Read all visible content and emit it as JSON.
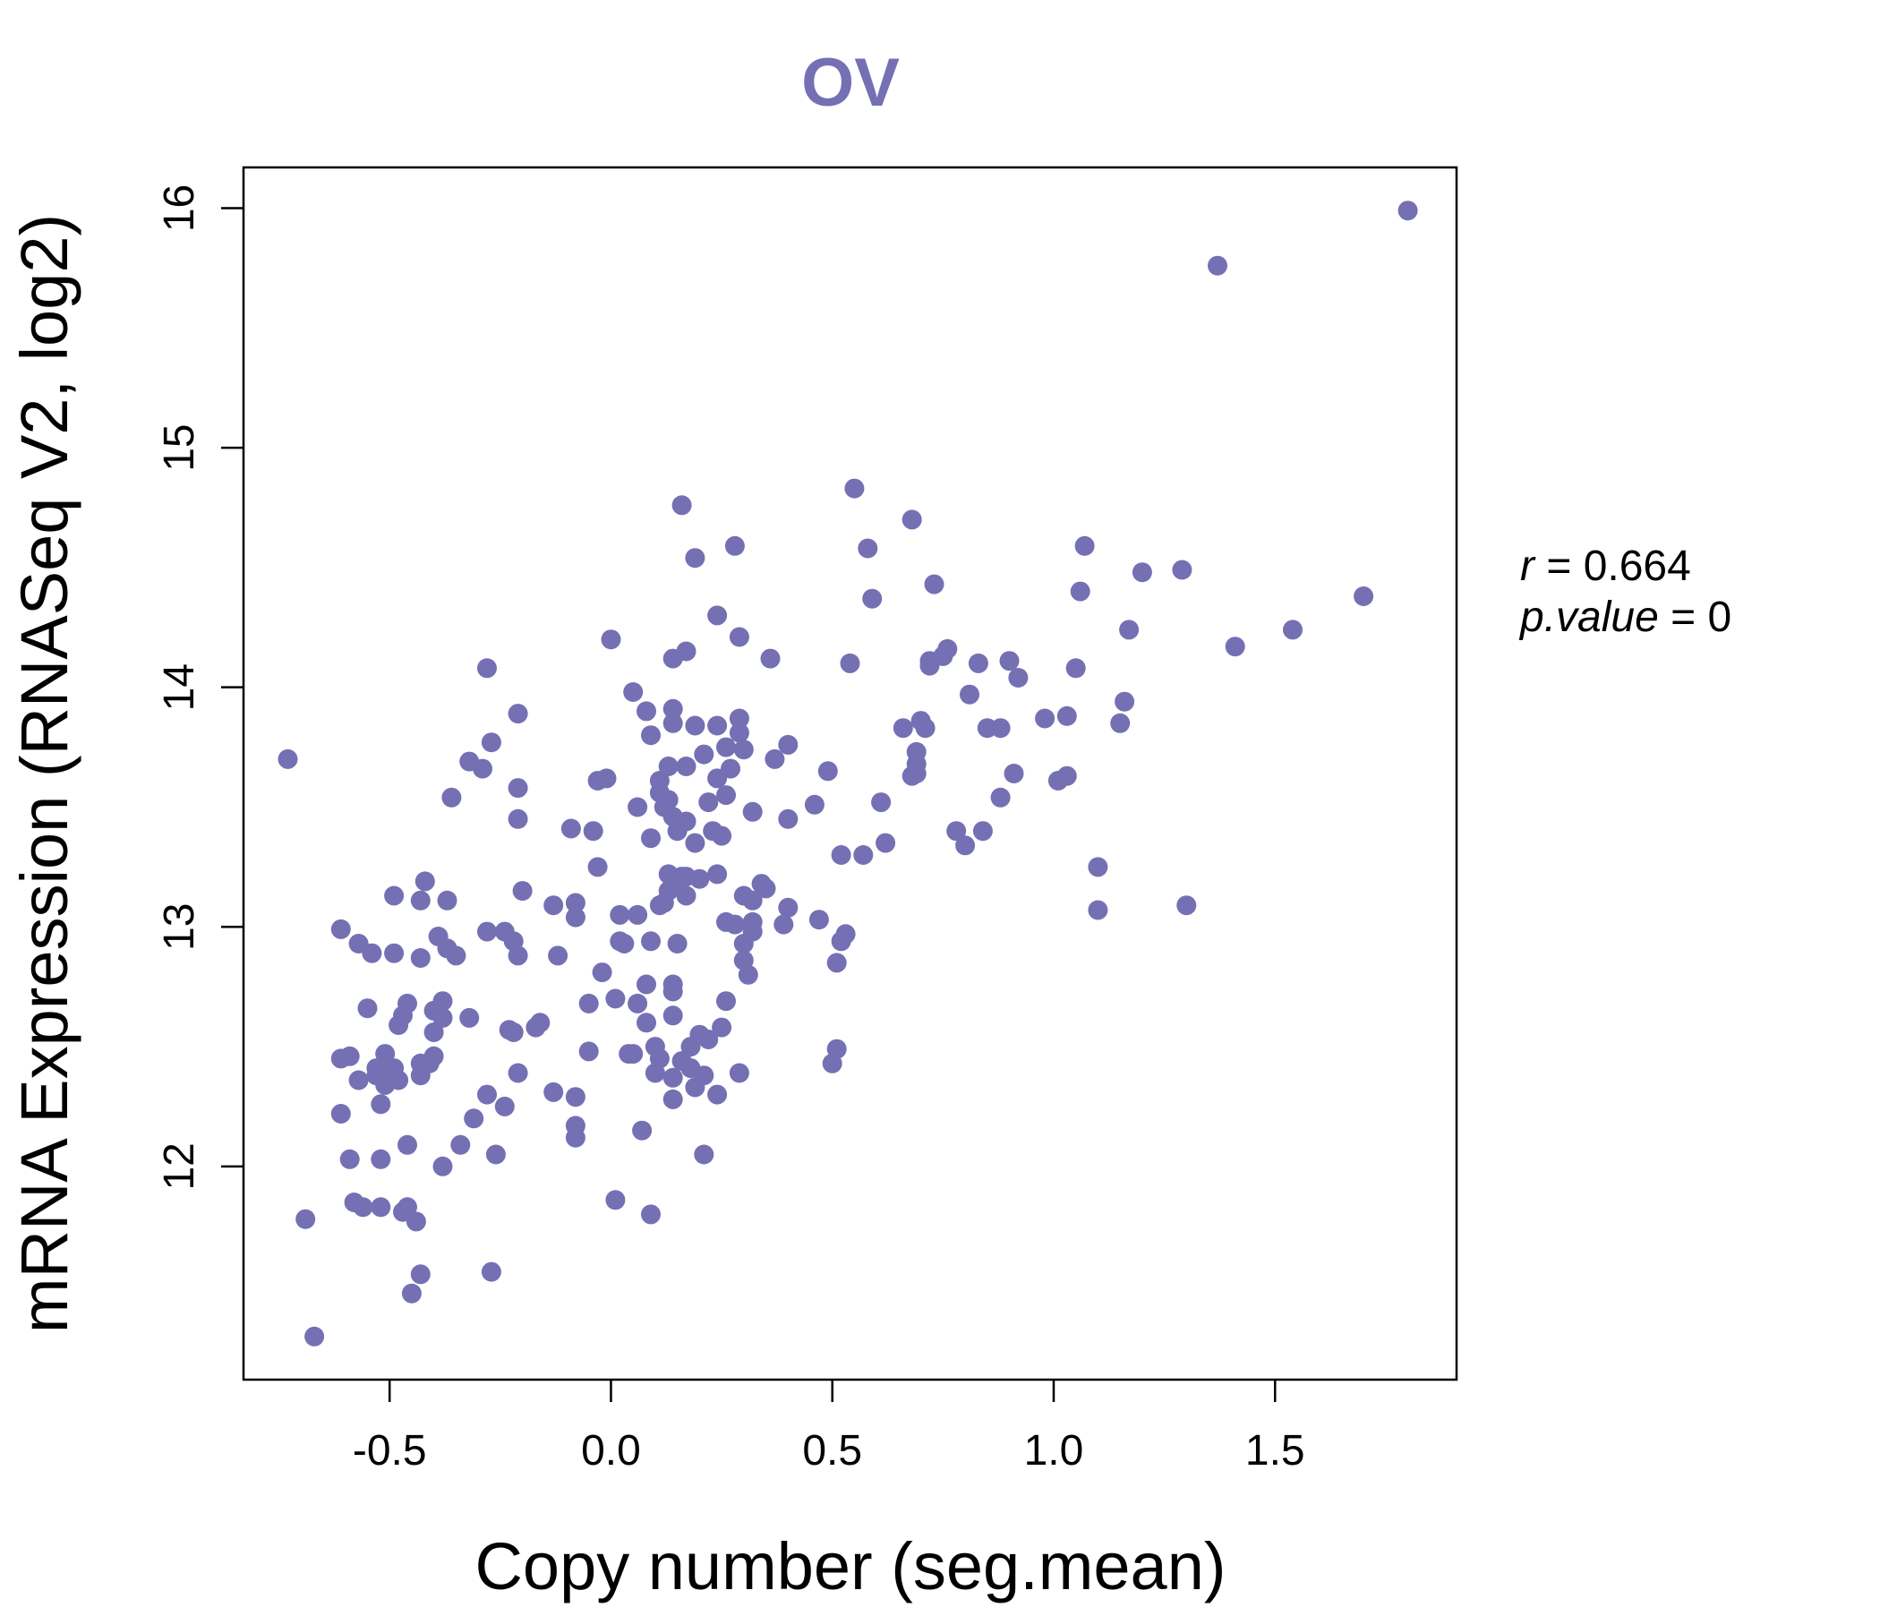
{
  "accent_color": "#7570b3",
  "chart_data": {
    "type": "scatter",
    "title": "OV",
    "xlabel": "Copy number (seg.mean)",
    "ylabel": "mRNA Expression (RNASeq V2, log2)",
    "xlim": [
      -0.83,
      1.91
    ],
    "ylim": [
      11.11,
      16.17
    ],
    "xticks": [
      -0.5,
      0.0,
      0.5,
      1.0,
      1.5
    ],
    "xtick_labels": [
      "-0.5",
      "0.0",
      "0.5",
      "1.0",
      "1.5"
    ],
    "yticks": [
      12,
      13,
      14,
      15,
      16
    ],
    "ytick_labels": [
      "12",
      "13",
      "14",
      "15",
      "16"
    ],
    "grid": false,
    "annotations": {
      "r_label": "r",
      "r_value": "0.664",
      "p_label": "p.value",
      "p_value": "0"
    },
    "points": [
      [
        -0.73,
        13.7
      ],
      [
        -0.69,
        11.78
      ],
      [
        -0.67,
        11.29
      ],
      [
        -0.61,
        12.99
      ],
      [
        -0.61,
        12.45
      ],
      [
        -0.61,
        12.22
      ],
      [
        -0.59,
        12.46
      ],
      [
        -0.59,
        12.03
      ],
      [
        -0.58,
        11.85
      ],
      [
        -0.57,
        12.93
      ],
      [
        -0.57,
        12.36
      ],
      [
        -0.56,
        11.83
      ],
      [
        -0.55,
        12.66
      ],
      [
        -0.54,
        12.89
      ],
      [
        -0.53,
        12.41
      ],
      [
        -0.53,
        12.38
      ],
      [
        -0.52,
        12.26
      ],
      [
        -0.52,
        12.03
      ],
      [
        -0.52,
        11.83
      ],
      [
        -0.51,
        12.47
      ],
      [
        -0.51,
        12.34
      ],
      [
        -0.5,
        12.38
      ],
      [
        -0.49,
        12.41
      ],
      [
        -0.49,
        13.13
      ],
      [
        -0.49,
        12.89
      ],
      [
        -0.48,
        12.59
      ],
      [
        -0.48,
        12.36
      ],
      [
        -0.47,
        12.63
      ],
      [
        -0.47,
        11.81
      ],
      [
        -0.46,
        12.68
      ],
      [
        -0.46,
        12.09
      ],
      [
        -0.46,
        11.83
      ],
      [
        -0.45,
        11.47
      ],
      [
        -0.44,
        11.77
      ],
      [
        -0.43,
        13.11
      ],
      [
        -0.43,
        12.87
      ],
      [
        -0.43,
        12.43
      ],
      [
        -0.43,
        12.38
      ],
      [
        -0.43,
        11.55
      ],
      [
        -0.42,
        13.19
      ],
      [
        -0.41,
        12.43
      ],
      [
        -0.4,
        12.56
      ],
      [
        -0.4,
        12.46
      ],
      [
        -0.4,
        12.65
      ],
      [
        -0.39,
        12.96
      ],
      [
        -0.38,
        12.69
      ],
      [
        -0.38,
        12.62
      ],
      [
        -0.38,
        12.0
      ],
      [
        -0.37,
        13.11
      ],
      [
        -0.37,
        12.91
      ],
      [
        -0.36,
        13.54
      ],
      [
        -0.35,
        12.88
      ],
      [
        -0.34,
        12.09
      ],
      [
        -0.32,
        12.62
      ],
      [
        -0.32,
        13.69
      ],
      [
        -0.31,
        12.2
      ],
      [
        -0.29,
        13.66
      ],
      [
        -0.28,
        12.98
      ],
      [
        -0.28,
        12.3
      ],
      [
        -0.28,
        14.08
      ],
      [
        -0.27,
        13.77
      ],
      [
        -0.27,
        11.56
      ],
      [
        -0.26,
        12.05
      ],
      [
        -0.24,
        12.98
      ],
      [
        -0.24,
        12.25
      ],
      [
        -0.23,
        12.57
      ],
      [
        -0.22,
        12.94
      ],
      [
        -0.22,
        12.56
      ],
      [
        -0.21,
        13.89
      ],
      [
        -0.21,
        13.58
      ],
      [
        -0.21,
        13.45
      ],
      [
        -0.21,
        12.88
      ],
      [
        -0.21,
        12.39
      ],
      [
        -0.2,
        13.15
      ],
      [
        -0.17,
        12.58
      ],
      [
        -0.16,
        12.6
      ],
      [
        -0.13,
        13.09
      ],
      [
        -0.13,
        12.31
      ],
      [
        -0.12,
        12.88
      ],
      [
        -0.09,
        13.41
      ],
      [
        -0.08,
        13.1
      ],
      [
        -0.08,
        13.04
      ],
      [
        -0.08,
        12.29
      ],
      [
        -0.08,
        12.17
      ],
      [
        -0.08,
        12.12
      ],
      [
        -0.05,
        12.68
      ],
      [
        -0.05,
        12.48
      ],
      [
        -0.04,
        13.4
      ],
      [
        -0.03,
        13.25
      ],
      [
        -0.03,
        13.61
      ],
      [
        -0.02,
        12.81
      ],
      [
        -0.01,
        13.62
      ],
      [
        0.0,
        14.2
      ],
      [
        0.01,
        12.7
      ],
      [
        0.01,
        11.86
      ],
      [
        0.02,
        13.05
      ],
      [
        0.02,
        12.94
      ],
      [
        0.03,
        12.93
      ],
      [
        0.04,
        12.47
      ],
      [
        0.05,
        12.47
      ],
      [
        0.05,
        13.98
      ],
      [
        0.06,
        12.68
      ],
      [
        0.06,
        13.05
      ],
      [
        0.06,
        13.5
      ],
      [
        0.07,
        12.15
      ],
      [
        0.08,
        12.76
      ],
      [
        0.08,
        12.6
      ],
      [
        0.08,
        13.9
      ],
      [
        0.09,
        13.8
      ],
      [
        0.09,
        13.37
      ],
      [
        0.09,
        12.94
      ],
      [
        0.09,
        11.8
      ],
      [
        0.1,
        12.5
      ],
      [
        0.1,
        12.39
      ],
      [
        0.11,
        13.61
      ],
      [
        0.11,
        13.56
      ],
      [
        0.11,
        13.09
      ],
      [
        0.11,
        12.45
      ],
      [
        0.12,
        13.5
      ],
      [
        0.12,
        13.1
      ],
      [
        0.13,
        13.67
      ],
      [
        0.13,
        13.53
      ],
      [
        0.13,
        13.22
      ],
      [
        0.13,
        13.15
      ],
      [
        0.14,
        14.12
      ],
      [
        0.14,
        13.91
      ],
      [
        0.14,
        13.85
      ],
      [
        0.14,
        13.46
      ],
      [
        0.14,
        13.17
      ],
      [
        0.14,
        12.76
      ],
      [
        0.14,
        12.73
      ],
      [
        0.14,
        12.63
      ],
      [
        0.14,
        12.37
      ],
      [
        0.14,
        12.28
      ],
      [
        0.15,
        13.4
      ],
      [
        0.15,
        12.93
      ],
      [
        0.16,
        14.76
      ],
      [
        0.16,
        13.21
      ],
      [
        0.16,
        12.44
      ],
      [
        0.17,
        14.15
      ],
      [
        0.17,
        13.67
      ],
      [
        0.17,
        13.44
      ],
      [
        0.17,
        13.21
      ],
      [
        0.17,
        13.13
      ],
      [
        0.18,
        12.5
      ],
      [
        0.18,
        12.41
      ],
      [
        0.19,
        14.54
      ],
      [
        0.19,
        13.84
      ],
      [
        0.19,
        13.35
      ],
      [
        0.19,
        12.33
      ],
      [
        0.2,
        13.2
      ],
      [
        0.2,
        12.55
      ],
      [
        0.21,
        13.72
      ],
      [
        0.21,
        12.38
      ],
      [
        0.21,
        12.05
      ],
      [
        0.22,
        13.52
      ],
      [
        0.22,
        12.53
      ],
      [
        0.23,
        13.4
      ],
      [
        0.24,
        14.3
      ],
      [
        0.24,
        13.84
      ],
      [
        0.24,
        13.62
      ],
      [
        0.24,
        13.22
      ],
      [
        0.24,
        12.3
      ],
      [
        0.25,
        13.38
      ],
      [
        0.25,
        12.58
      ],
      [
        0.26,
        13.75
      ],
      [
        0.26,
        13.55
      ],
      [
        0.26,
        13.02
      ],
      [
        0.26,
        12.69
      ],
      [
        0.27,
        13.66
      ],
      [
        0.28,
        14.59
      ],
      [
        0.28,
        13.01
      ],
      [
        0.29,
        14.21
      ],
      [
        0.29,
        13.87
      ],
      [
        0.29,
        13.81
      ],
      [
        0.29,
        12.39
      ],
      [
        0.3,
        13.74
      ],
      [
        0.3,
        13.13
      ],
      [
        0.3,
        12.93
      ],
      [
        0.3,
        12.86
      ],
      [
        0.31,
        12.8
      ],
      [
        0.32,
        13.48
      ],
      [
        0.32,
        13.02
      ],
      [
        0.32,
        12.98
      ],
      [
        0.32,
        13.11
      ],
      [
        0.34,
        13.18
      ],
      [
        0.35,
        13.16
      ],
      [
        0.36,
        14.12
      ],
      [
        0.37,
        13.7
      ],
      [
        0.39,
        13.01
      ],
      [
        0.4,
        13.76
      ],
      [
        0.4,
        13.45
      ],
      [
        0.4,
        13.08
      ],
      [
        0.46,
        13.51
      ],
      [
        0.47,
        13.03
      ],
      [
        0.49,
        13.65
      ],
      [
        0.5,
        12.43
      ],
      [
        0.51,
        12.85
      ],
      [
        0.51,
        12.49
      ],
      [
        0.52,
        13.3
      ],
      [
        0.52,
        12.94
      ],
      [
        0.53,
        12.97
      ],
      [
        0.54,
        14.1
      ],
      [
        0.55,
        14.83
      ],
      [
        0.57,
        13.3
      ],
      [
        0.58,
        14.58
      ],
      [
        0.59,
        14.37
      ],
      [
        0.61,
        13.52
      ],
      [
        0.62,
        13.35
      ],
      [
        0.66,
        13.83
      ],
      [
        0.68,
        14.7
      ],
      [
        0.68,
        13.63
      ],
      [
        0.69,
        13.64
      ],
      [
        0.69,
        13.68
      ],
      [
        0.69,
        13.73
      ],
      [
        0.7,
        13.86
      ],
      [
        0.71,
        13.83
      ],
      [
        0.72,
        14.09
      ],
      [
        0.72,
        14.11
      ],
      [
        0.73,
        14.43
      ],
      [
        0.75,
        14.13
      ],
      [
        0.76,
        14.16
      ],
      [
        0.78,
        13.4
      ],
      [
        0.8,
        13.34
      ],
      [
        0.81,
        13.97
      ],
      [
        0.83,
        14.1
      ],
      [
        0.84,
        13.4
      ],
      [
        0.85,
        13.83
      ],
      [
        0.88,
        13.83
      ],
      [
        0.88,
        13.54
      ],
      [
        0.9,
        14.11
      ],
      [
        0.91,
        13.64
      ],
      [
        0.92,
        14.04
      ],
      [
        0.98,
        13.87
      ],
      [
        1.01,
        13.61
      ],
      [
        1.03,
        13.88
      ],
      [
        1.03,
        13.63
      ],
      [
        1.05,
        14.08
      ],
      [
        1.06,
        14.4
      ],
      [
        1.07,
        14.59
      ],
      [
        1.1,
        13.25
      ],
      [
        1.1,
        13.07
      ],
      [
        1.15,
        13.85
      ],
      [
        1.16,
        13.94
      ],
      [
        1.17,
        14.24
      ],
      [
        1.2,
        14.48
      ],
      [
        1.29,
        14.49
      ],
      [
        1.3,
        13.09
      ],
      [
        1.37,
        15.76
      ],
      [
        1.41,
        14.17
      ],
      [
        1.54,
        14.24
      ],
      [
        1.7,
        14.38
      ],
      [
        1.8,
        15.99
      ]
    ]
  }
}
